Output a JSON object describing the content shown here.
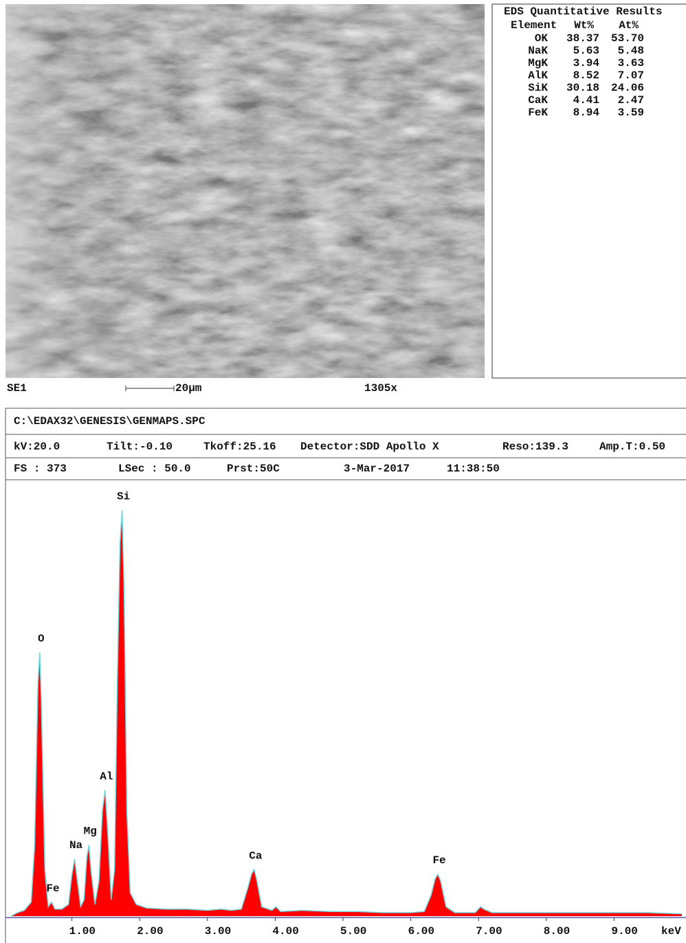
{
  "eds_table": {
    "title": "EDS Quantitative Results",
    "columns": [
      "Element",
      "Wt%",
      "At%"
    ],
    "rows": [
      [
        "OK",
        "38.37",
        "53.70"
      ],
      [
        "NaK",
        "5.63",
        "5.48"
      ],
      [
        "MgK",
        "3.94",
        "3.63"
      ],
      [
        "AlK",
        "8.52",
        "7.07"
      ],
      [
        "SiK",
        "30.18",
        "24.06"
      ],
      [
        "CaK",
        "4.41",
        "2.47"
      ],
      [
        "FeK",
        "8.94",
        "3.59"
      ]
    ]
  },
  "image_caption": {
    "mode": "SE1",
    "scale": "20µm",
    "magnification": "1305x"
  },
  "spectrum_header": {
    "file": "C:\\EDAX32\\GENESIS\\GENMAPS.SPC",
    "row1": [
      "kV:20.0",
      "Tilt:-0.10",
      "Tkoff:25.16",
      "Detector:SDD Apollo X",
      "Reso:139.3",
      "Amp.T:0.50"
    ],
    "row2": [
      "FS : 373",
      "LSec : 50.0",
      "Prst:50C",
      "3-Mar-2017",
      "11:38:50"
    ]
  },
  "chart_data": {
    "type": "area",
    "x_label": "keV",
    "x": [
      0.1,
      0.2,
      0.3,
      0.4,
      0.45,
      0.5,
      0.525,
      0.55,
      0.6,
      0.65,
      0.7,
      0.75,
      0.85,
      0.95,
      1.0,
      1.04,
      1.08,
      1.13,
      1.18,
      1.22,
      1.25,
      1.28,
      1.34,
      1.4,
      1.45,
      1.49,
      1.53,
      1.58,
      1.63,
      1.67,
      1.71,
      1.74,
      1.77,
      1.81,
      1.86,
      1.95,
      2.1,
      2.4,
      2.7,
      3.0,
      3.2,
      3.35,
      3.5,
      3.6,
      3.65,
      3.69,
      3.73,
      3.8,
      3.95,
      4.01,
      4.08,
      4.4,
      4.8,
      5.2,
      5.6,
      6.0,
      6.2,
      6.3,
      6.36,
      6.4,
      6.44,
      6.52,
      6.65,
      6.95,
      7.03,
      7.08,
      7.2,
      7.6,
      8.0,
      8.5,
      9.0,
      9.5,
      10.0
    ],
    "series": [
      {
        "color": "#ff0000",
        "line_color": "#6fd3dc",
        "values": [
          0,
          3,
          5,
          12,
          60,
          200,
          226,
          180,
          40,
          8,
          12,
          6,
          6,
          10,
          35,
          49,
          30,
          8,
          14,
          50,
          61,
          40,
          10,
          30,
          90,
          108,
          70,
          14,
          40,
          200,
          320,
          348,
          280,
          90,
          20,
          10,
          7,
          6,
          6,
          5,
          6,
          5,
          6,
          25,
          36,
          40,
          30,
          8,
          5,
          8,
          4,
          5,
          4,
          4,
          3,
          3,
          4,
          18,
          32,
          36,
          30,
          8,
          3,
          3,
          8,
          6,
          3,
          3,
          3,
          3,
          3,
          3,
          2
        ]
      }
    ],
    "annotations": [
      {
        "text": "O",
        "x": 0.525
      },
      {
        "text": "Fe",
        "x": 0.7
      },
      {
        "text": "Na",
        "x": 1.04
      },
      {
        "text": "Mg",
        "x": 1.25
      },
      {
        "text": "Al",
        "x": 1.49
      },
      {
        "text": "Si",
        "x": 1.74
      },
      {
        "text": "Ca",
        "x": 3.69
      },
      {
        "text": "Fe",
        "x": 6.4
      }
    ],
    "xlim": [
      0,
      10
    ],
    "ylim": [
      0,
      373
    ],
    "xticks": [
      {
        "value": 1,
        "label": "1.00"
      },
      {
        "value": 2,
        "label": "2.00"
      },
      {
        "value": 3,
        "label": "3.00"
      },
      {
        "value": 4,
        "label": "4.00"
      },
      {
        "value": 5,
        "label": "5.00"
      },
      {
        "value": 6,
        "label": "6.00"
      },
      {
        "value": 7,
        "label": "7.00"
      },
      {
        "value": 8,
        "label": "8.00"
      },
      {
        "value": 9,
        "label": "9.00"
      }
    ]
  }
}
